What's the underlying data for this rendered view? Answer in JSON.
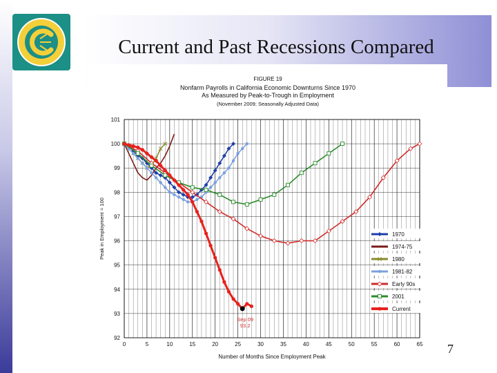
{
  "slide": {
    "title": "Current and Past Recessions Compared",
    "page_number": "7"
  },
  "chart_data": {
    "type": "line",
    "figure_label": "FIGURE 19",
    "title": "Nonfarm Payrolls in California Economic Downturns Since 1970",
    "subtitle": "As Measured by Peak-to-Trough in Employment",
    "note": "(November 2009; Seasonally Adjusted Data)",
    "xlabel": "Number of Months Since Employment Peak",
    "ylabel": "Peak in Employment = 100",
    "xlim": [
      0,
      65
    ],
    "ylim": [
      92,
      101
    ],
    "x_ticks": [
      0,
      5,
      10,
      15,
      20,
      25,
      30,
      35,
      40,
      45,
      50,
      55,
      60,
      65
    ],
    "y_ticks": [
      92,
      93,
      94,
      95,
      96,
      97,
      98,
      99,
      100,
      101
    ],
    "grid": true,
    "legend_position": "right",
    "annotation": {
      "x": 26,
      "y": 93.2,
      "label": "Sep 09",
      "value_label": "93.2"
    },
    "series": [
      {
        "name": "1970",
        "color": "#1f3fa8",
        "marker": "diamond",
        "x": [
          0,
          1,
          2,
          3,
          4,
          5,
          6,
          7,
          8,
          9,
          10,
          11,
          12,
          13,
          14,
          15,
          16,
          17,
          18,
          19,
          20,
          21,
          22,
          23,
          24
        ],
        "y": [
          100,
          99.9,
          99.7,
          99.5,
          99.4,
          99.2,
          99.0,
          98.8,
          98.7,
          98.6,
          98.4,
          98.2,
          98.0,
          97.9,
          97.8,
          97.8,
          97.9,
          98.1,
          98.3,
          98.6,
          98.9,
          99.2,
          99.5,
          99.8,
          100
        ]
      },
      {
        "name": "1974-75",
        "color": "#7a1a1a",
        "marker": "none",
        "x": [
          0,
          1,
          2,
          3,
          4,
          5,
          6,
          7,
          8,
          9,
          10,
          11,
          12
        ],
        "y": [
          100,
          99.6,
          99.2,
          98.8,
          98.6,
          98.5,
          98.7,
          99.0,
          99.2,
          99.5,
          99.9,
          100.4,
          101.2
        ]
      },
      {
        "name": "1980",
        "color": "#8a8a2a",
        "marker": "x",
        "x": [
          0,
          1,
          2,
          3,
          4,
          5,
          6,
          7,
          8,
          9
        ],
        "y": [
          100,
          99.8,
          99.6,
          99.4,
          99.2,
          99.0,
          99.1,
          99.4,
          99.8,
          100
        ]
      },
      {
        "name": "1981-82",
        "color": "#7aa0e0",
        "marker": "circle",
        "x": [
          0,
          1,
          2,
          3,
          4,
          5,
          6,
          7,
          8,
          9,
          10,
          11,
          12,
          13,
          14,
          15,
          16,
          17,
          18,
          19,
          20,
          21,
          22,
          23,
          24,
          25,
          26,
          27
        ],
        "y": [
          100,
          99.8,
          99.6,
          99.4,
          99.2,
          99.0,
          98.8,
          98.6,
          98.4,
          98.2,
          98.0,
          97.9,
          97.8,
          97.7,
          97.6,
          97.6,
          97.7,
          97.8,
          98.0,
          98.2,
          98.4,
          98.6,
          98.8,
          99.0,
          99.3,
          99.6,
          99.8,
          100
        ]
      },
      {
        "name": "Early 90s",
        "color": "#d02a2a",
        "marker": "diamond-open",
        "x": [
          0,
          3,
          6,
          9,
          12,
          15,
          18,
          21,
          24,
          27,
          30,
          33,
          36,
          39,
          42,
          45,
          48,
          51,
          54,
          57,
          60,
          63,
          65
        ],
        "y": [
          100,
          99.7,
          99.2,
          98.8,
          98.4,
          98.0,
          97.6,
          97.2,
          96.9,
          96.5,
          96.2,
          96.0,
          95.9,
          96.0,
          96.0,
          96.4,
          96.8,
          97.2,
          97.8,
          98.6,
          99.3,
          99.8,
          100
        ]
      },
      {
        "name": "2001",
        "color": "#2a8a2a",
        "marker": "square-open",
        "x": [
          0,
          3,
          6,
          9,
          12,
          15,
          18,
          21,
          24,
          27,
          30,
          33,
          36,
          39,
          42,
          45,
          48
        ],
        "y": [
          100,
          99.6,
          99.1,
          98.7,
          98.4,
          98.2,
          98.1,
          97.9,
          97.6,
          97.5,
          97.7,
          97.9,
          98.3,
          98.8,
          99.2,
          99.6,
          100
        ]
      },
      {
        "name": "Current",
        "color": "#e8201c",
        "marker": "dot",
        "x": [
          0,
          1,
          2,
          3,
          4,
          5,
          6,
          7,
          8,
          9,
          10,
          11,
          12,
          13,
          14,
          15,
          16,
          17,
          18,
          19,
          20,
          21,
          22,
          23,
          24,
          25,
          26,
          27,
          28
        ],
        "y": [
          100,
          99.95,
          99.9,
          99.85,
          99.75,
          99.6,
          99.45,
          99.3,
          99.1,
          98.9,
          98.7,
          98.5,
          98.3,
          98.1,
          97.9,
          97.6,
          97.2,
          96.8,
          96.3,
          95.8,
          95.3,
          94.8,
          94.3,
          93.9,
          93.6,
          93.4,
          93.2,
          93.4,
          93.3
        ]
      }
    ]
  }
}
